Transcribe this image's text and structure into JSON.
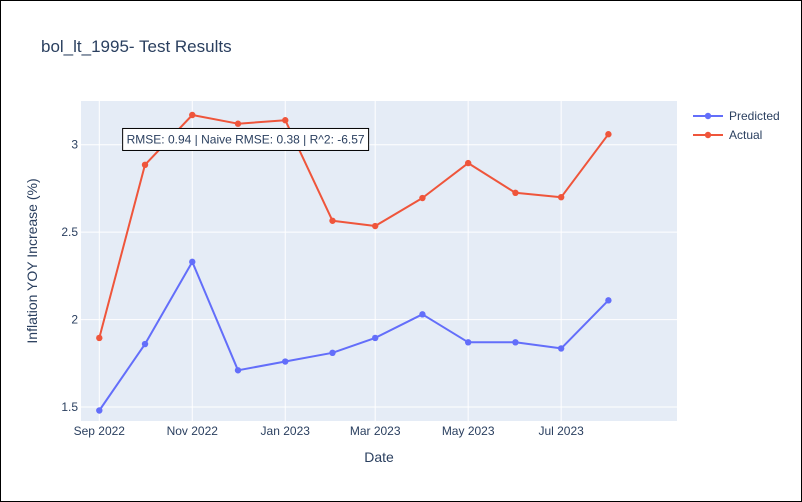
{
  "chart_data": {
    "type": "line",
    "title": "bol_lt_1995- Test Results",
    "xlabel": "Date",
    "ylabel": "Inflation YOY Increase (%)",
    "x": [
      "2022-09-01",
      "2022-10-01",
      "2022-11-01",
      "2022-12-01",
      "2023-01-01",
      "2023-02-01",
      "2023-03-01",
      "2023-04-01",
      "2023-05-01",
      "2023-06-01",
      "2023-07-01",
      "2023-08-01"
    ],
    "x_tick_labels": [
      "Sep 2022",
      "Nov 2022",
      "Jan 2023",
      "Mar 2023",
      "May 2023",
      "Jul 2023"
    ],
    "y_ticks": [
      1.5,
      2,
      2.5,
      3
    ],
    "y_tick_labels": [
      "1.5",
      "2",
      "2.5",
      "3"
    ],
    "xlim": [
      "2022-08-20",
      "2023-09-15"
    ],
    "ylim": [
      1.42,
      3.25
    ],
    "grid": true,
    "legend_position": "top-right",
    "series": [
      {
        "name": "Predicted",
        "color": "#636efa",
        "values": [
          1.48,
          1.86,
          2.33,
          1.71,
          1.76,
          1.81,
          1.895,
          2.03,
          1.87,
          1.87,
          1.835,
          2.11
        ]
      },
      {
        "name": "Actual",
        "color": "#ef553b",
        "values": [
          1.895,
          2.885,
          3.17,
          3.12,
          3.14,
          2.565,
          2.535,
          2.695,
          2.895,
          2.725,
          2.7,
          3.06
        ]
      }
    ],
    "annotation": {
      "text": "RMSE: 0.94 | Naive RMSE: 0.38 | R^2: -6.57",
      "x": "2022-12-06",
      "y": 3.03
    },
    "plot_bg": "#e5ecf6",
    "grid_color": "#ffffff"
  }
}
